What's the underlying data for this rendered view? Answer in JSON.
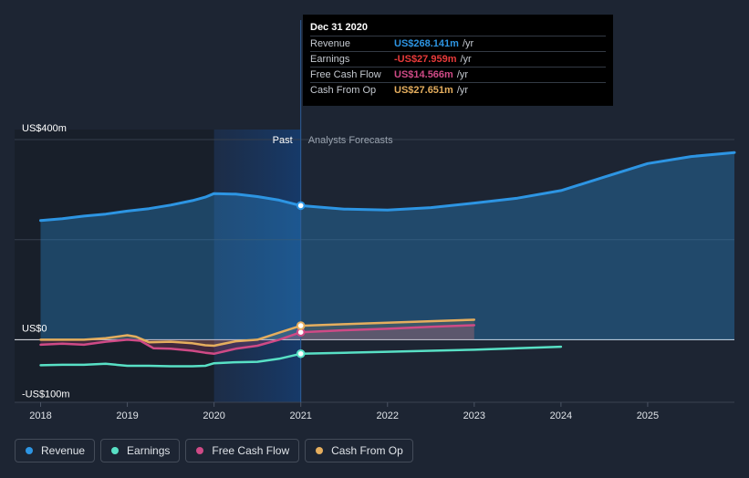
{
  "chart_data": {
    "type": "line",
    "x_range": [
      2017.7,
      2026.0
    ],
    "y_range": [
      -125,
      420
    ],
    "past_end": 2021.0,
    "shade_start": 2020.0,
    "labels": {
      "past": "Past",
      "forecast": "Analysts Forecasts"
    },
    "y_ticks": [
      {
        "value": 400,
        "label": "US$400m"
      },
      {
        "value": 0,
        "label": "US$0"
      },
      {
        "value": -100,
        "label": "-US$100m"
      }
    ],
    "gridlines": [
      400,
      200,
      0
    ],
    "x_ticks": [
      {
        "value": 2018,
        "label": "2018"
      },
      {
        "value": 2019,
        "label": "2019"
      },
      {
        "value": 2020,
        "label": "2020"
      },
      {
        "value": 2021,
        "label": "2021"
      },
      {
        "value": 2022,
        "label": "2022"
      },
      {
        "value": 2023,
        "label": "2023"
      },
      {
        "value": 2024,
        "label": "2024"
      },
      {
        "value": 2025,
        "label": "2025"
      }
    ],
    "series": [
      {
        "name": "Revenue",
        "color": "#2d95e3",
        "area": true,
        "x": [
          2018.0,
          2018.25,
          2018.5,
          2018.75,
          2019.0,
          2019.25,
          2019.5,
          2019.75,
          2019.9,
          2020.0,
          2020.25,
          2020.5,
          2020.75,
          2021.0,
          2021.5,
          2022.0,
          2022.5,
          2023.0,
          2023.5,
          2024.0,
          2024.5,
          2025.0,
          2025.5,
          2026.0
        ],
        "y": [
          238,
          242,
          247,
          251,
          257,
          262,
          269,
          278,
          285,
          292,
          291,
          286,
          279,
          268,
          261,
          259,
          264,
          273,
          283,
          298,
          325,
          352,
          366,
          374
        ]
      },
      {
        "name": "Earnings",
        "color": "#58e0c5",
        "x": [
          2018.0,
          2018.25,
          2018.5,
          2018.75,
          2019.0,
          2019.25,
          2019.5,
          2019.75,
          2019.9,
          2020.0,
          2020.25,
          2020.5,
          2020.75,
          2021.0,
          2021.5,
          2022.0,
          2022.5,
          2023.0,
          2023.5,
          2024.0
        ],
        "y": [
          -51,
          -50,
          -50,
          -48,
          -52,
          -52,
          -53,
          -53,
          -52,
          -47,
          -45,
          -44,
          -38,
          -28,
          -26,
          -24,
          -22,
          -20,
          -17,
          -14
        ]
      },
      {
        "name": "Free Cash Flow",
        "color": "#cf4a86",
        "area": true,
        "x": [
          2018.0,
          2018.25,
          2018.5,
          2018.75,
          2019.0,
          2019.15,
          2019.3,
          2019.5,
          2019.75,
          2019.9,
          2020.0,
          2020.25,
          2020.5,
          2020.75,
          2021.0,
          2021.5,
          2022.0,
          2022.5,
          2023.0
        ],
        "y": [
          -10,
          -8,
          -10,
          -4,
          0,
          -2,
          -17,
          -18,
          -22,
          -26,
          -28,
          -18,
          -12,
          0,
          15,
          19,
          22,
          26,
          29
        ]
      },
      {
        "name": "Cash From Op",
        "color": "#e5ae5e",
        "area": true,
        "x": [
          2018.0,
          2018.25,
          2018.5,
          2018.75,
          2019.0,
          2019.1,
          2019.25,
          2019.5,
          2019.75,
          2019.9,
          2020.0,
          2020.25,
          2020.5,
          2020.75,
          2021.0,
          2021.5,
          2022.0,
          2022.5,
          2023.0
        ],
        "y": [
          0,
          0,
          0,
          3,
          9,
          6,
          -5,
          -4,
          -7,
          -11,
          -12,
          -3,
          0,
          14,
          28,
          31,
          34,
          37,
          40
        ]
      }
    ],
    "markers": [
      {
        "series": "Revenue",
        "x": 2021.0,
        "y": 268
      },
      {
        "series": "Earnings",
        "x": 2021.0,
        "y": -28
      },
      {
        "series": "Free Cash Flow",
        "x": 2021.0,
        "y": 15
      },
      {
        "series": "Cash From Op",
        "x": 2021.0,
        "y": 28
      }
    ]
  },
  "tooltip": {
    "date": "Dec 31 2020",
    "rows": [
      {
        "name": "Revenue",
        "value": "US$268.141m",
        "unit": "/yr",
        "color": "#2d95e3"
      },
      {
        "name": "Earnings",
        "value": "-US$27.959m",
        "unit": "/yr",
        "color": "#e83a3a"
      },
      {
        "name": "Free Cash Flow",
        "value": "US$14.566m",
        "unit": "/yr",
        "color": "#cf4a86"
      },
      {
        "name": "Cash From Op",
        "value": "US$27.651m",
        "unit": "/yr",
        "color": "#e5ae5e"
      }
    ]
  },
  "legend": [
    {
      "label": "Revenue",
      "color": "#2d95e3"
    },
    {
      "label": "Earnings",
      "color": "#58e0c5"
    },
    {
      "label": "Free Cash Flow",
      "color": "#cf4a86"
    },
    {
      "label": "Cash From Op",
      "color": "#e5ae5e"
    }
  ]
}
